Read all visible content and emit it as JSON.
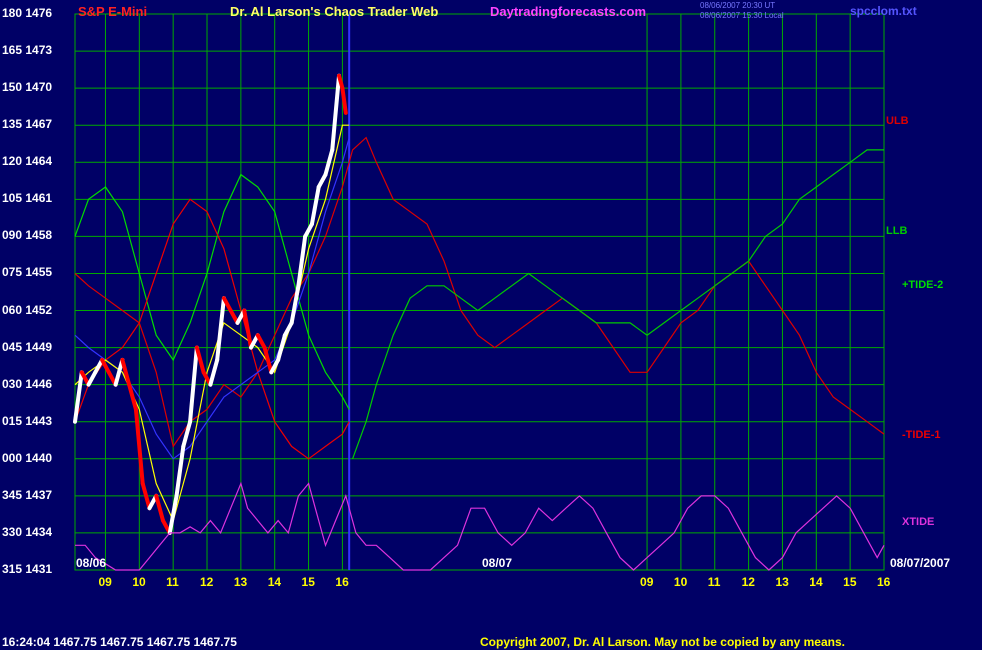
{
  "header": {
    "symbol": "S&P E-Mini",
    "title": "Dr. Al Larson's Chaos Trader Web",
    "site": "Daytradingforecasts.com",
    "stamp_1": "08/06/2007 20:30 UT",
    "stamp_2": "08/06/2007 15:30 Local",
    "file": "spcclom.txt"
  },
  "footer": {
    "quote": "16:24:04  1467.75 1467.75 1467.75 1467.75",
    "copyright": "Copyright 2007, Dr. Al Larson. May not be copied by any means."
  },
  "dates": {
    "left": "08/06",
    "mid": "08/07",
    "right": "08/07/2007"
  },
  "colors": {
    "background": "#000066",
    "grid": "#00aa00",
    "price_up": "#ffffff",
    "price_down": "#ff0000",
    "ulb": "#dd0000",
    "llb": "#00cc00",
    "tide2": "#00dd00",
    "tide1": "#ee0000",
    "xtide": "#dd33dd",
    "moving_avg_yellow": "#ffff00",
    "moving_avg_blue": "#3333ff"
  },
  "chart_data": {
    "type": "line",
    "title": "S&P E-Mini",
    "y_left_labels": [
      "180",
      "165",
      "150",
      "135",
      "120",
      "105",
      "090",
      "075",
      "060",
      "045",
      "030",
      "015",
      "000",
      "345",
      "330",
      "315"
    ],
    "y_right_labels": [
      "1476",
      "1473",
      "1470",
      "1467",
      "1464",
      "1461",
      "1458",
      "1455",
      "1452",
      "1449",
      "1446",
      "1443",
      "1440",
      "1437",
      "1434",
      "1431"
    ],
    "ylim": [
      1431,
      1476
    ],
    "x_tick_labels": [
      "09",
      "10",
      "11",
      "12",
      "13",
      "14",
      "15",
      "16",
      "09",
      "10",
      "11",
      "12",
      "13",
      "14",
      "15",
      "16"
    ],
    "x_hours": [
      9,
      10,
      11,
      12,
      13,
      14,
      15,
      16,
      25,
      26,
      27,
      28,
      29,
      30,
      31,
      32
    ],
    "xlim": [
      8.1,
      32.0
    ],
    "session_break_hour": 16.2,
    "series": [
      {
        "name": "ULB",
        "color": "#dd0000",
        "x": [
          8.1,
          8.5,
          9.0,
          9.5,
          10.0,
          10.5,
          11.0,
          11.5,
          12.0,
          12.5,
          13.0,
          13.5,
          14.0,
          14.5,
          15.0,
          15.5,
          16.0,
          16.3,
          16.7,
          17.0,
          17.5,
          18.0,
          18.5,
          19.0,
          19.5,
          20.0,
          20.5,
          21.0,
          21.5,
          22.0,
          22.5,
          23.0,
          23.5,
          24.0,
          24.5,
          25.0,
          25.5,
          26.0,
          26.5,
          27.0,
          27.5,
          28.0,
          28.5,
          29.0,
          29.5,
          30.0,
          30.5,
          31.0,
          31.5,
          32.0
        ],
        "y": [
          1455,
          1454,
          1453,
          1452,
          1451,
          1447,
          1441,
          1443,
          1444,
          1446,
          1445,
          1447,
          1450,
          1453,
          1455,
          1458,
          1462,
          1465,
          1466,
          1464,
          1461,
          1460,
          1459,
          1456,
          1452,
          1450,
          1449,
          1450,
          1451,
          1452,
          1453,
          1452,
          1451,
          1449,
          1447,
          1447,
          1449,
          1451,
          1452,
          1454,
          1455,
          1456,
          1454,
          1452,
          1450,
          1447,
          1445,
          1444,
          1443,
          1442
        ]
      },
      {
        "name": "LLB",
        "color": "#00cc00",
        "x": [
          16.3,
          16.7,
          17.0,
          17.5,
          18.0,
          18.5,
          19.0,
          19.5,
          20.0,
          20.5,
          21.0,
          21.5,
          22.0,
          22.5,
          23.0,
          23.5,
          24.0,
          24.5,
          25.0,
          25.5,
          26.0,
          26.5,
          27.0,
          27.5,
          28.0,
          28.5,
          29.0,
          29.5,
          30.0,
          30.5,
          31.0,
          31.5,
          32.0
        ],
        "y": [
          1440,
          1443,
          1446,
          1450,
          1453,
          1454,
          1454,
          1453,
          1452,
          1453,
          1454,
          1455,
          1454,
          1453,
          1452,
          1451,
          1451,
          1451,
          1450,
          1451,
          1452,
          1453,
          1454,
          1455,
          1456,
          1458,
          1459,
          1461,
          1462,
          1463,
          1464,
          1465,
          1465
        ]
      },
      {
        "name": "+TIDE-2",
        "color": "#00dd00",
        "x": [
          8.1,
          8.5,
          9.0,
          9.5,
          10.0,
          10.5,
          11.0,
          11.5,
          12.0,
          12.5,
          13.0,
          13.5,
          14.0,
          14.5,
          15.0,
          15.5,
          16.0,
          16.2
        ],
        "y": [
          1458,
          1461,
          1462,
          1460,
          1455,
          1450,
          1448,
          1451,
          1455,
          1460,
          1463,
          1462,
          1460,
          1455,
          1450,
          1447,
          1445,
          1444
        ]
      },
      {
        "name": "-TIDE-1",
        "color": "#ee0000",
        "x": [
          8.1,
          8.5,
          9.0,
          9.5,
          10.0,
          10.5,
          11.0,
          11.5,
          12.0,
          12.5,
          13.0,
          13.5,
          14.0,
          14.5,
          15.0,
          15.5,
          16.0,
          16.2
        ],
        "y": [
          1443,
          1446,
          1448,
          1449,
          1451,
          1455,
          1459,
          1461,
          1460,
          1457,
          1452,
          1447,
          1443,
          1441,
          1440,
          1441,
          1442,
          1443
        ]
      },
      {
        "name": "Blue average",
        "color": "#3333ff",
        "x": [
          8.1,
          8.5,
          9.0,
          9.5,
          10.0,
          10.5,
          11.0,
          11.5,
          12.0,
          12.5,
          13.0,
          13.5,
          14.0,
          14.5,
          15.0,
          15.5,
          16.0,
          16.2
        ],
        "y": [
          1450,
          1449,
          1448,
          1447,
          1445,
          1442,
          1440,
          1441,
          1443,
          1445,
          1446,
          1447,
          1448,
          1451,
          1455,
          1460,
          1464,
          1466
        ]
      },
      {
        "name": "Yellow average",
        "color": "#ffff00",
        "x": [
          8.1,
          8.5,
          9.0,
          9.5,
          10.0,
          10.5,
          11.0,
          11.5,
          12.0,
          12.5,
          13.0,
          13.5,
          14.0,
          14.5,
          15.0,
          15.5,
          16.0,
          16.2
        ],
        "y": [
          1446,
          1447,
          1448,
          1447,
          1444,
          1438,
          1435,
          1440,
          1447,
          1451,
          1450,
          1449,
          1447,
          1451,
          1457,
          1461,
          1467,
          1467
        ]
      },
      {
        "name": "Price",
        "color": "#ffffff",
        "x": [
          8.1,
          8.3,
          8.5,
          8.7,
          8.9,
          9.1,
          9.3,
          9.5,
          9.7,
          9.9,
          10.1,
          10.3,
          10.5,
          10.7,
          10.9,
          11.1,
          11.3,
          11.5,
          11.7,
          11.9,
          12.1,
          12.3,
          12.5,
          12.7,
          12.9,
          13.1,
          13.3,
          13.5,
          13.7,
          13.9,
          14.1,
          14.3,
          14.5,
          14.7,
          14.9,
          15.1,
          15.3,
          15.5,
          15.7,
          15.9,
          16.0,
          16.1
        ],
        "y": [
          1443,
          1447,
          1446,
          1447,
          1448,
          1447,
          1446,
          1448,
          1446,
          1444,
          1438,
          1436,
          1437,
          1435,
          1434,
          1437,
          1441,
          1443,
          1449,
          1447,
          1446,
          1448,
          1453,
          1452,
          1451,
          1452,
          1449,
          1450,
          1449,
          1447,
          1448,
          1450,
          1451,
          1454,
          1458,
          1459,
          1462,
          1463,
          1465,
          1471,
          1470,
          1468
        ]
      },
      {
        "name": "XTIDE",
        "color": "#dd33dd",
        "x": [
          8.1,
          8.4,
          8.7,
          9.0,
          9.3,
          9.6,
          10.0,
          10.3,
          10.6,
          10.9,
          11.2,
          11.5,
          11.8,
          12.1,
          12.4,
          12.7,
          13.0,
          13.2,
          13.5,
          13.8,
          14.1,
          14.4,
          14.7,
          15.0,
          15.2,
          15.5,
          15.8,
          16.1,
          16.4,
          16.7,
          17.0,
          17.4,
          17.8,
          18.2,
          18.6,
          19.0,
          19.4,
          19.8,
          20.2,
          20.6,
          21.0,
          21.4,
          21.8,
          22.2,
          22.6,
          23.0,
          23.4,
          23.8,
          24.2,
          24.6,
          25.0,
          25.4,
          25.8,
          26.2,
          26.6,
          27.0,
          27.4,
          27.8,
          28.2,
          28.6,
          29.0,
          29.4,
          29.8,
          30.2,
          30.6,
          31.0,
          31.4,
          31.8,
          32.0
        ],
        "y": [
          1433,
          1433,
          1432,
          1431.5,
          1431,
          1431,
          1431,
          1432,
          1433,
          1434,
          1434,
          1434.5,
          1434,
          1435,
          1434,
          1436,
          1438,
          1436,
          1435,
          1434,
          1435,
          1434,
          1437,
          1438,
          1436,
          1433,
          1435,
          1437,
          1434,
          1433,
          1433,
          1432,
          1431,
          1431,
          1431,
          1432,
          1433,
          1436,
          1436,
          1434,
          1433,
          1434,
          1436,
          1435,
          1436,
          1437,
          1436,
          1434,
          1432,
          1431,
          1432,
          1433,
          1434,
          1436,
          1437,
          1437,
          1436,
          1434,
          1432,
          1431,
          1432,
          1434,
          1435,
          1436,
          1437,
          1436,
          1434,
          1432,
          1433
        ]
      }
    ],
    "series_labels": [
      {
        "series": "ULB",
        "text": "ULB"
      },
      {
        "series": "LLB",
        "text": "LLB"
      },
      {
        "series": "+TIDE-2",
        "text": "+TIDE-2"
      },
      {
        "series": "-TIDE-1",
        "text": "-TIDE-1"
      },
      {
        "series": "XTIDE",
        "text": "XTIDE"
      }
    ],
    "grid": true
  }
}
